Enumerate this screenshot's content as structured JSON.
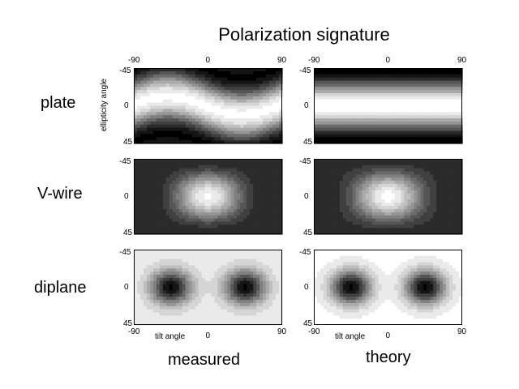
{
  "chart_data": {
    "type": "heatmap",
    "title": "Polarization signature",
    "x_axis": {
      "label": "tilt angle",
      "range": [
        -90,
        90
      ],
      "ticks": [
        "-90",
        "0",
        "90"
      ]
    },
    "y_axis": {
      "label": "ellipticity angle",
      "range": [
        -45,
        45
      ],
      "ticks": [
        "-45",
        "0",
        "45"
      ]
    },
    "colormap": "grayscale",
    "rows": [
      {
        "label": "plate",
        "key": "plate"
      },
      {
        "label": "V-wire",
        "key": "vwire"
      },
      {
        "label": "diplane",
        "key": "diplane"
      }
    ],
    "columns": [
      {
        "label": "measured",
        "key": "measured"
      },
      {
        "label": "theory",
        "key": "theory"
      }
    ]
  }
}
